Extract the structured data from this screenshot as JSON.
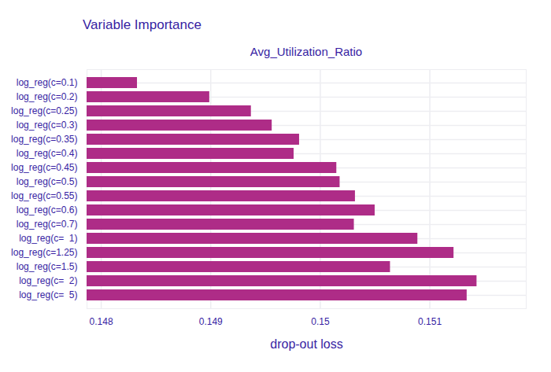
{
  "chart_data": {
    "type": "bar",
    "orientation": "horizontal",
    "title": "Variable Importance",
    "subtitle": "Avg_Utilization_Ratio",
    "xlabel": "drop-out loss",
    "categories": [
      "log_reg(c=0.1)",
      "log_reg(c=0.2)",
      "log_reg(c=0.25)",
      "log_reg(c=0.3)",
      "log_reg(c=0.35)",
      "log_reg(c=0.4)",
      "log_reg(c=0.45)",
      "log_reg(c=0.5)",
      "log_reg(c=0.55)",
      "log_reg(c=0.6)",
      "log_reg(c=0.7)",
      "log_reg(c=  1)",
      "log_reg(c=1.25)",
      "log_reg(c=1.5)",
      "log_reg(c=  2)",
      "log_reg(c=  5)"
    ],
    "values": [
      0.14833,
      0.14899,
      0.14937,
      0.14956,
      0.14981,
      0.14976,
      0.15015,
      0.15018,
      0.15032,
      0.1505,
      0.15031,
      0.15089,
      0.15122,
      0.15064,
      0.15143,
      0.15134
    ],
    "color": "#ae2c87",
    "xlim": [
      0.14787,
      0.15188
    ],
    "xticks": [
      0.148,
      0.149,
      0.15,
      0.151
    ],
    "grid": true
  }
}
